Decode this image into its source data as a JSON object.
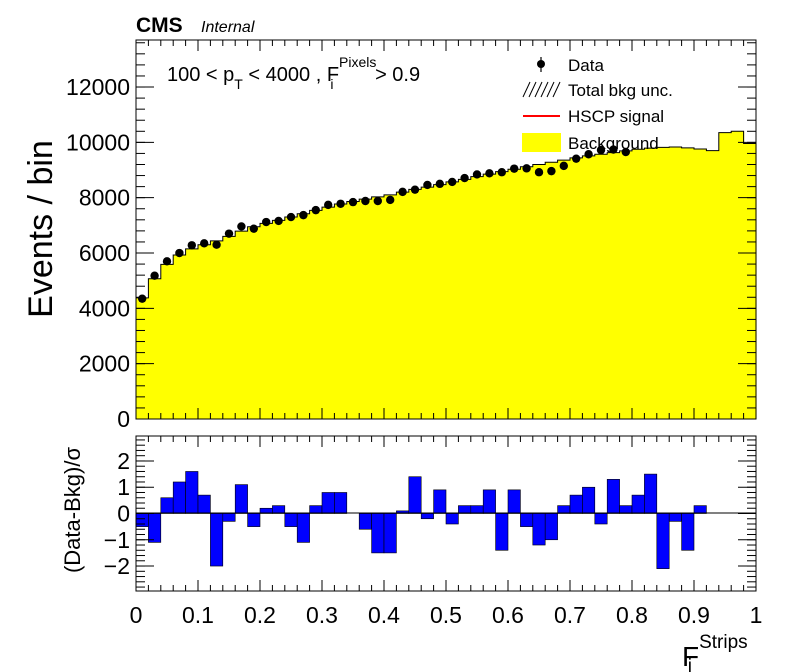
{
  "header": {
    "experiment": "CMS",
    "status": "Internal"
  },
  "cut_label": {
    "main": "100 < p",
    "sub1": "T",
    "mid": " < 4000 , F",
    "sup": "Pixels",
    "sub2": "i",
    "end": " > 0.9"
  },
  "x_axis_label": {
    "main": "F",
    "sup": "Strips",
    "sub": "i"
  },
  "colors": {
    "background": "#ffff00",
    "residual": "#0000ff",
    "signal": "#ff0000",
    "data": "#000000"
  },
  "chart_data": [
    {
      "type": "bar",
      "ylabel": "Events / bin",
      "ylim": [
        0,
        13700
      ],
      "xlim": [
        0,
        1
      ],
      "bin_width": 0.02,
      "legend_position": "top-right",
      "legend": [
        "Data",
        "Total bkg unc.",
        "HSCP signal",
        "Background"
      ],
      "x_ticks": [
        "0",
        "0.1",
        "0.2",
        "0.3",
        "0.4",
        "0.5",
        "0.6",
        "0.7",
        "0.8",
        "0.9",
        "1"
      ],
      "y_ticks": [
        "0",
        "2000",
        "4000",
        "6000",
        "8000",
        "10000",
        "12000"
      ],
      "series": [
        {
          "name": "Background",
          "type": "hist",
          "values": [
            4380,
            5070,
            5590,
            5930,
            6150,
            6300,
            6440,
            6600,
            6790,
            6950,
            7070,
            7180,
            7300,
            7420,
            7540,
            7660,
            7770,
            7860,
            7950,
            8030,
            8100,
            8200,
            8300,
            8380,
            8470,
            8570,
            8660,
            8760,
            8850,
            8940,
            9030,
            9120,
            9200,
            9280,
            9360,
            9440,
            9510,
            9570,
            9630,
            9690,
            9750,
            9790,
            9820,
            9830,
            9800,
            9760,
            9700,
            10350,
            10400,
            9960
          ]
        },
        {
          "name": "Data",
          "type": "points",
          "values": [
            4350,
            5180,
            5700,
            6000,
            6280,
            6350,
            6300,
            6700,
            6960,
            6880,
            7120,
            7160,
            7300,
            7370,
            7550,
            7740,
            7780,
            7840,
            7880,
            7880,
            7920,
            8210,
            8290,
            8460,
            8500,
            8570,
            8710,
            8840,
            8880,
            8920,
            9050,
            9060,
            8920,
            8960,
            9150,
            9410,
            9570,
            9720,
            9740,
            9650
          ]
        }
      ]
    },
    {
      "type": "bar",
      "ylabel": "(Data-Bkg)/σ",
      "ylim": [
        -2.95,
        2.95
      ],
      "xlim": [
        0,
        1
      ],
      "y_ticks": [
        "−2",
        "−1",
        "0",
        "1",
        "2"
      ],
      "series": [
        {
          "name": "(Data-Bkg)/σ",
          "values": [
            -0.5,
            -1.1,
            0.6,
            1.2,
            1.6,
            0.7,
            -2.0,
            -0.3,
            1.1,
            -0.5,
            0.2,
            0.3,
            -0.5,
            -1.1,
            0.3,
            0.8,
            0.8,
            0.0,
            -0.6,
            -1.5,
            -1.5,
            0.1,
            1.4,
            -0.2,
            0.9,
            -0.4,
            0.3,
            0.3,
            0.9,
            -1.4,
            0.9,
            -0.5,
            -1.2,
            -1.0,
            0.3,
            0.7,
            1.0,
            -0.4,
            1.3,
            0.3,
            0.7,
            1.5,
            -2.1,
            -0.3,
            -1.4,
            0.3
          ]
        }
      ]
    }
  ]
}
